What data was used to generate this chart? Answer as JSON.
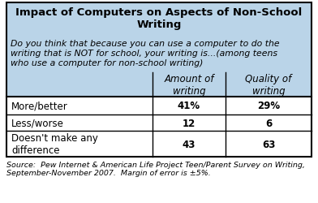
{
  "title": "Impact of Computers on Aspects of Non-School\nWriting",
  "subtitle": "Do you think that because you can use a computer to do the\nwriting that is NOT for school, your writing is...(among teens\nwho use a computer for non-school writing)",
  "col_headers": [
    "Amount of\nwriting",
    "Quality of\nwriting"
  ],
  "row_labels": [
    "More/better",
    "Less/worse",
    "Doesn't make any\ndifference"
  ],
  "data": [
    [
      "41%",
      "29%"
    ],
    [
      "12",
      "6"
    ],
    [
      "43",
      "63"
    ]
  ],
  "source": "Source:  Pew Internet & American Life Project Teen/Parent Survey on Writing,\nSeptember-November 2007.  Margin of error is ±5%.",
  "header_bg": "#bad4e8",
  "table_bg": "#ffffff",
  "border_color": "#000000",
  "title_fontsize": 9.5,
  "subtitle_fontsize": 7.8,
  "header_fontsize": 8.5,
  "data_fontsize": 8.5,
  "source_fontsize": 6.8
}
